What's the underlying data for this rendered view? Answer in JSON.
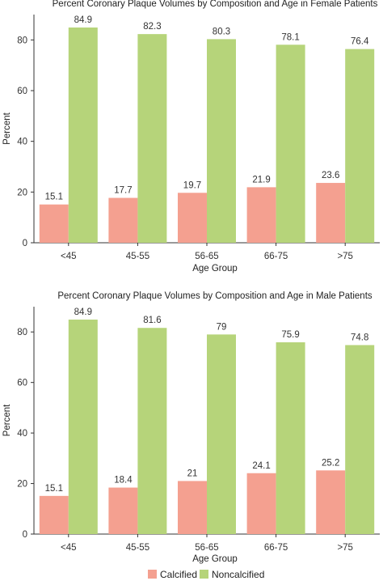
{
  "legend": {
    "items": [
      {
        "label": "Calcified",
        "color": "#F4A090"
      },
      {
        "label": "Noncalcified",
        "color": "#B6D47A"
      }
    ]
  },
  "chart_data": [
    {
      "type": "bar",
      "title": "Percent Coronary Plaque Volumes by Composition and Age in Female Patients",
      "xlabel": "Age Group",
      "ylabel": "Percent",
      "ylim": [
        0,
        90
      ],
      "yticks": [
        0,
        20,
        40,
        60,
        80
      ],
      "categories": [
        "<45",
        "45-55",
        "56-65",
        "66-75",
        ">75"
      ],
      "series": [
        {
          "name": "Calcified",
          "color": "#F4A090",
          "values": [
            15.1,
            17.7,
            19.7,
            21.9,
            23.6
          ],
          "labels": [
            "15.1",
            "17.7",
            "19.7",
            "21.9",
            "23.6"
          ]
        },
        {
          "name": "Noncalcified",
          "color": "#B6D47A",
          "values": [
            84.9,
            82.3,
            80.3,
            78.1,
            76.4
          ],
          "labels": [
            "84.9",
            "82.3",
            "80.3",
            "78.1",
            "76.4"
          ]
        }
      ],
      "grid": false
    },
    {
      "type": "bar",
      "title": "Percent Coronary Plaque Volumes by Composition and Age in Male Patients",
      "xlabel": "Age Group",
      "ylabel": "Percent",
      "ylim": [
        0,
        90
      ],
      "yticks": [
        0,
        20,
        40,
        60,
        80
      ],
      "categories": [
        "<45",
        "45-55",
        "56-65",
        "66-75",
        ">75"
      ],
      "series": [
        {
          "name": "Calcified",
          "color": "#F4A090",
          "values": [
            15.1,
            18.4,
            21,
            24.1,
            25.2
          ],
          "labels": [
            "15.1",
            "18.4",
            "21",
            "24.1",
            "25.2"
          ]
        },
        {
          "name": "Noncalcified",
          "color": "#B6D47A",
          "values": [
            84.9,
            81.6,
            79,
            75.9,
            74.8
          ],
          "labels": [
            "84.9",
            "81.6",
            "79",
            "75.9",
            "74.8"
          ]
        }
      ],
      "grid": false
    }
  ]
}
